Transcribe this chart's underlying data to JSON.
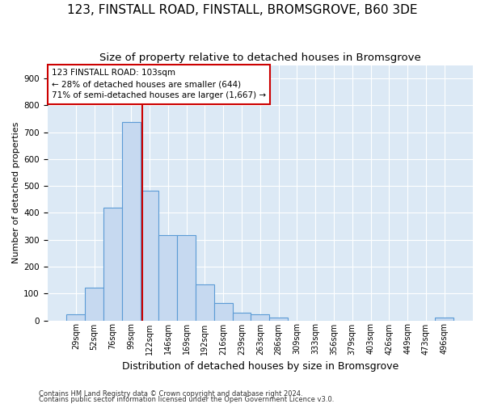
{
  "title": "123, FINSTALL ROAD, FINSTALL, BROMSGROVE, B60 3DE",
  "subtitle": "Size of property relative to detached houses in Bromsgrove",
  "xlabel": "Distribution of detached houses by size in Bromsgrove",
  "ylabel": "Number of detached properties",
  "footnote1": "Contains HM Land Registry data © Crown copyright and database right 2024.",
  "footnote2": "Contains public sector information licensed under the Open Government Licence v3.0.",
  "bar_labels": [
    "29sqm",
    "52sqm",
    "76sqm",
    "99sqm",
    "122sqm",
    "146sqm",
    "169sqm",
    "192sqm",
    "216sqm",
    "239sqm",
    "263sqm",
    "286sqm",
    "309sqm",
    "333sqm",
    "356sqm",
    "379sqm",
    "403sqm",
    "426sqm",
    "449sqm",
    "473sqm",
    "496sqm"
  ],
  "bar_values": [
    22,
    122,
    420,
    738,
    483,
    318,
    318,
    133,
    65,
    30,
    22,
    10,
    0,
    0,
    0,
    0,
    0,
    0,
    0,
    0,
    10
  ],
  "bar_color": "#c6d9f0",
  "bar_edge_color": "#5b9bd5",
  "vline_color": "#cc0000",
  "annotation_line1": "123 FINSTALL ROAD: 103sqm",
  "annotation_line2": "← 28% of detached houses are smaller (644)",
  "annotation_line3": "71% of semi-detached houses are larger (1,667) →",
  "annotation_box_color": "#cc0000",
  "ylim": [
    0,
    950
  ],
  "yticks": [
    0,
    100,
    200,
    300,
    400,
    500,
    600,
    700,
    800,
    900
  ],
  "bg_color": "#dce9f5",
  "title_fontsize": 11,
  "subtitle_fontsize": 9.5,
  "axis_label_fontsize": 9,
  "ylabel_fontsize": 8,
  "tick_fontsize": 7.5
}
